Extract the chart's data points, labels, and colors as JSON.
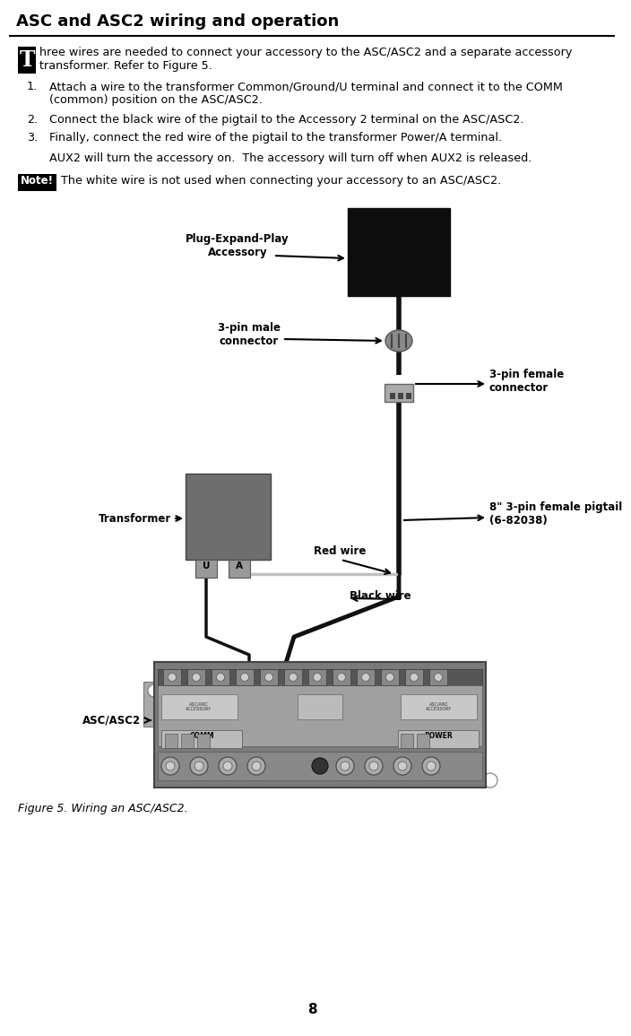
{
  "title": "ASC and ASC2 wiring and operation",
  "bg_color": "#ffffff",
  "drop_cap_letter": "T",
  "intro_text_line1": "hree wires are needed to connect your accessory to the ASC/ASC2 and a separate accessory",
  "intro_text_line2": "transformer. Refer to Figure 5.",
  "item1a": "Attach a wire to the transformer Common/Ground/U terminal and connect it to the COMM",
  "item1b": "(common) position on the ASC/ASC2.",
  "item2": "Connect the black wire of the pigtail to the Accessory 2 terminal on the ASC/ASC2.",
  "item3": "Finally, connect the red wire of the pigtail to the transformer Power/A terminal.",
  "aux_text": "AUX2 will turn the accessory on.  The accessory will turn off when AUX2 is released.",
  "note_label": "Note!",
  "note_text": "The white wire is not used when connecting your accessory to an ASC/ASC2.",
  "figure_caption": "Figure 5. Wiring an ASC/ASC2.",
  "page_number": "8",
  "label_plug_expand": "Plug-Expand-Play\nAccessory",
  "label_3pin_male": "3-pin male\nconnector",
  "label_3pin_female": "3-pin female\nconnector",
  "label_transformer": "Transformer",
  "label_red_wire": "Red wire",
  "label_black_wire": "Black wire",
  "label_asc": "ASC/ASC2",
  "label_pigtail": "8\" 3-pin female pigtail\n(6-82038)",
  "transformer_label_u": "U",
  "transformer_label_a": "A"
}
